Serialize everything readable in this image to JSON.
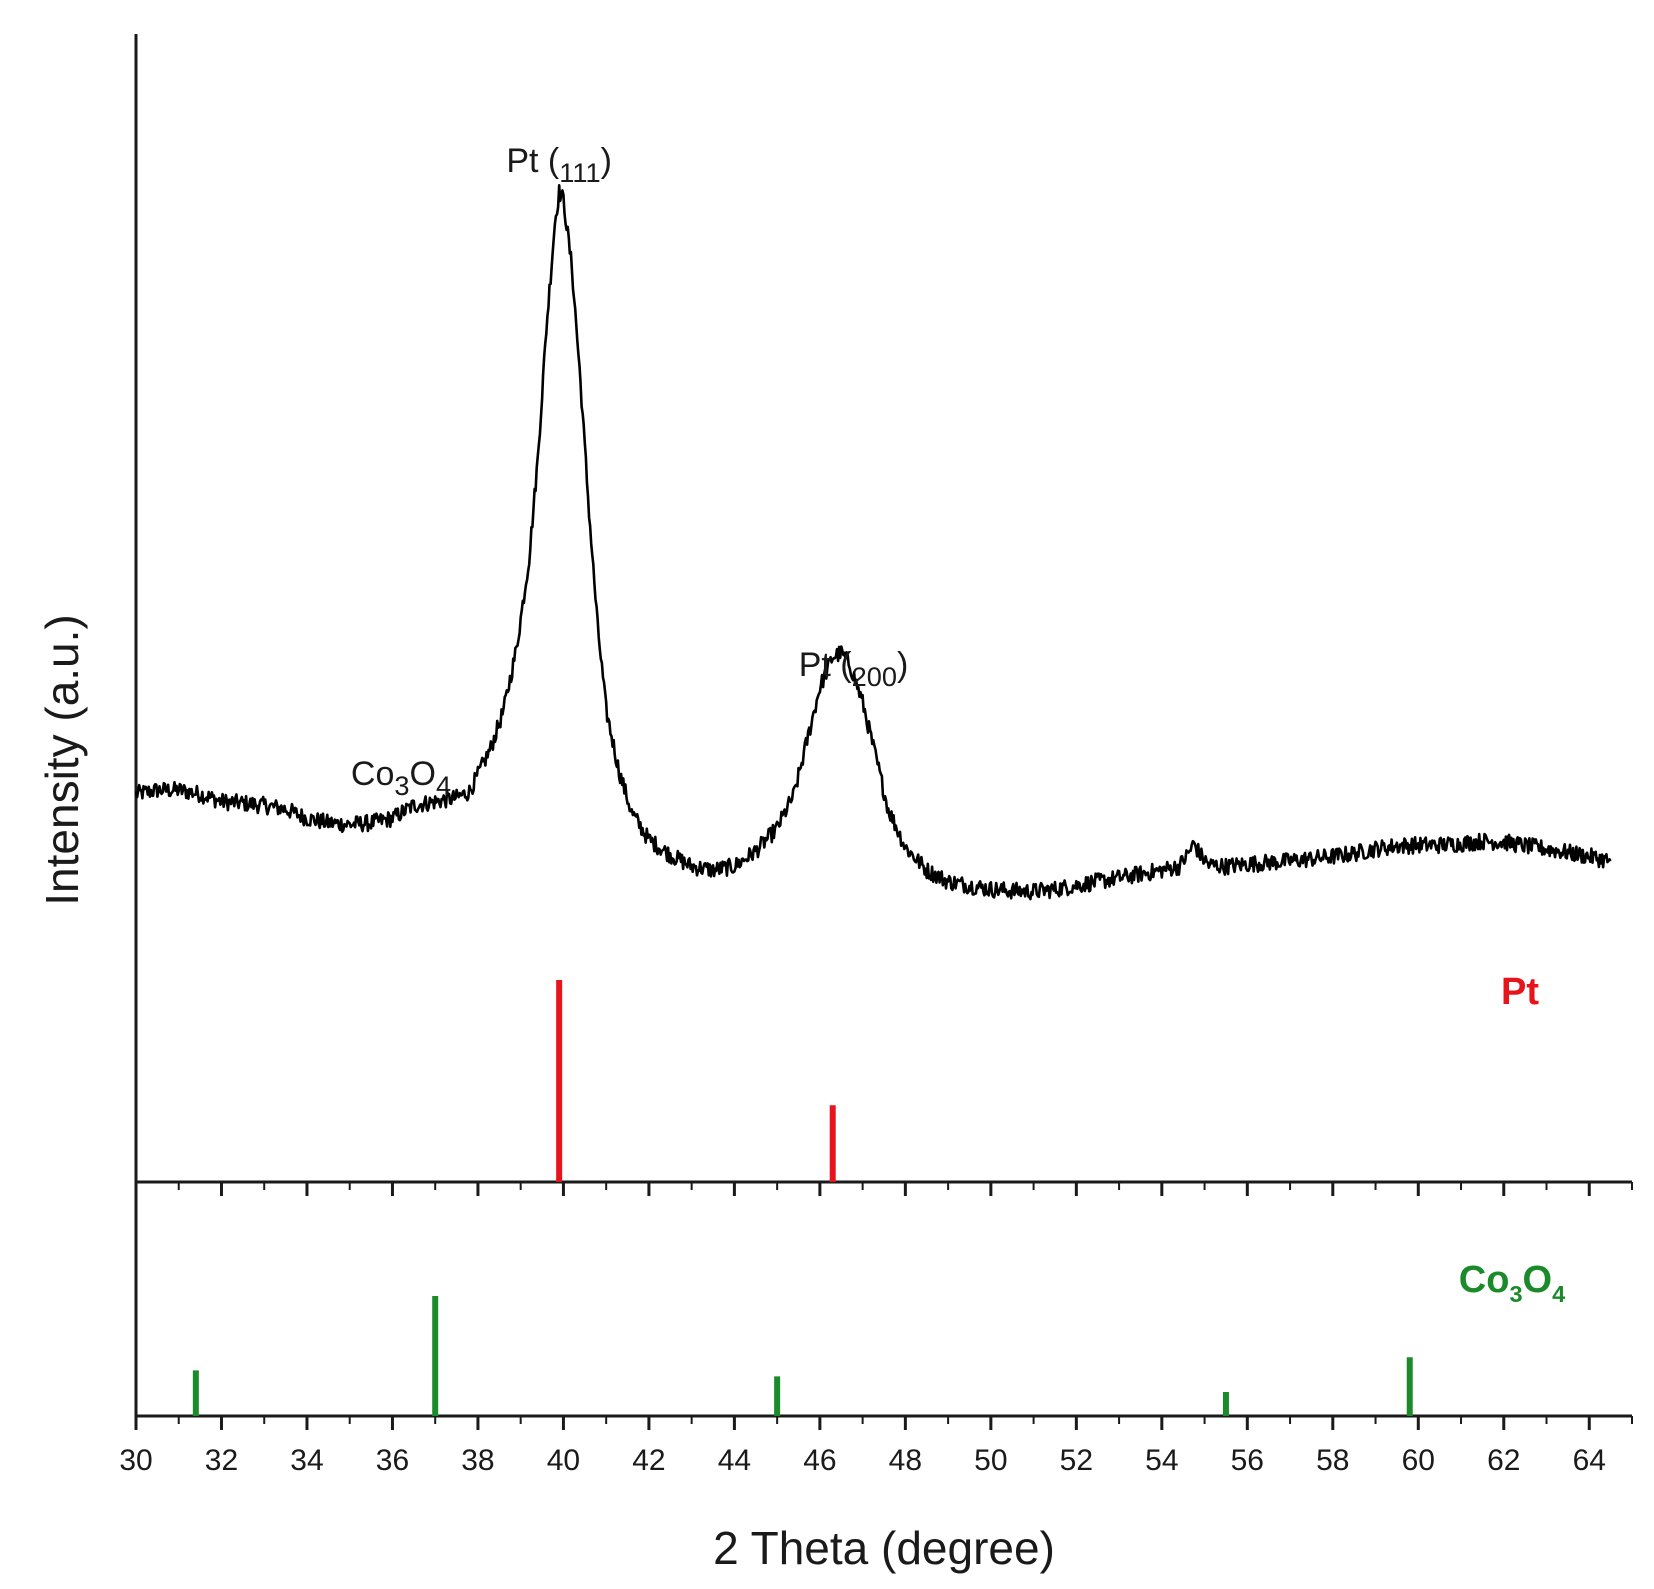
{
  "chart_data": {
    "type": "line",
    "xlabel": "2 Theta (degree)",
    "ylabel": "Intensity (a.u.)",
    "xlim": [
      30,
      65
    ],
    "x_ticks": [
      30,
      32,
      34,
      36,
      38,
      40,
      42,
      44,
      46,
      48,
      50,
      52,
      54,
      56,
      58,
      60,
      62,
      64
    ],
    "y_ticks_shown": false,
    "grid": false,
    "series": [
      {
        "kind": "xrd-pattern",
        "color": "#000000",
        "points": [
          [
            30.0,
            0.21
          ],
          [
            30.5,
            0.215
          ],
          [
            31.0,
            0.215
          ],
          [
            31.5,
            0.21
          ],
          [
            32.0,
            0.2
          ],
          [
            32.5,
            0.198
          ],
          [
            33.0,
            0.195
          ],
          [
            33.5,
            0.19
          ],
          [
            34.0,
            0.178
          ],
          [
            34.5,
            0.172
          ],
          [
            35.0,
            0.17
          ],
          [
            35.5,
            0.172
          ],
          [
            36.0,
            0.178
          ],
          [
            36.5,
            0.195
          ],
          [
            37.0,
            0.2
          ],
          [
            37.5,
            0.205
          ],
          [
            37.8,
            0.213
          ],
          [
            38.0,
            0.235
          ],
          [
            38.3,
            0.27
          ],
          [
            38.6,
            0.32
          ],
          [
            38.9,
            0.4
          ],
          [
            39.2,
            0.52
          ],
          [
            39.4,
            0.65
          ],
          [
            39.6,
            0.82
          ],
          [
            39.8,
            0.96
          ],
          [
            39.9,
            1.0
          ],
          [
            40.0,
            0.99
          ],
          [
            40.2,
            0.9
          ],
          [
            40.4,
            0.75
          ],
          [
            40.6,
            0.58
          ],
          [
            40.8,
            0.43
          ],
          [
            41.0,
            0.32
          ],
          [
            41.3,
            0.24
          ],
          [
            41.6,
            0.185
          ],
          [
            42.0,
            0.15
          ],
          [
            42.5,
            0.13
          ],
          [
            43.0,
            0.115
          ],
          [
            43.5,
            0.11
          ],
          [
            44.0,
            0.115
          ],
          [
            44.5,
            0.135
          ],
          [
            45.0,
            0.165
          ],
          [
            45.4,
            0.21
          ],
          [
            45.7,
            0.28
          ],
          [
            46.0,
            0.35
          ],
          [
            46.3,
            0.39
          ],
          [
            46.5,
            0.395
          ],
          [
            46.7,
            0.38
          ],
          [
            47.0,
            0.33
          ],
          [
            47.3,
            0.26
          ],
          [
            47.6,
            0.19
          ],
          [
            48.0,
            0.14
          ],
          [
            48.5,
            0.11
          ],
          [
            49.0,
            0.095
          ],
          [
            49.5,
            0.09
          ],
          [
            50.0,
            0.085
          ],
          [
            50.5,
            0.083
          ],
          [
            51.0,
            0.082
          ],
          [
            51.5,
            0.085
          ],
          [
            52.0,
            0.09
          ],
          [
            52.5,
            0.095
          ],
          [
            53.0,
            0.1
          ],
          [
            53.5,
            0.105
          ],
          [
            54.0,
            0.11
          ],
          [
            54.4,
            0.115
          ],
          [
            54.6,
            0.13
          ],
          [
            54.75,
            0.145
          ],
          [
            54.9,
            0.13
          ],
          [
            55.1,
            0.117
          ],
          [
            55.5,
            0.115
          ],
          [
            56.0,
            0.118
          ],
          [
            56.5,
            0.12
          ],
          [
            57.0,
            0.122
          ],
          [
            57.5,
            0.125
          ],
          [
            58.0,
            0.128
          ],
          [
            58.5,
            0.132
          ],
          [
            59.0,
            0.138
          ],
          [
            59.5,
            0.142
          ],
          [
            60.0,
            0.143
          ],
          [
            60.5,
            0.143
          ],
          [
            61.0,
            0.145
          ],
          [
            61.5,
            0.148
          ],
          [
            62.0,
            0.147
          ],
          [
            62.5,
            0.142
          ],
          [
            63.0,
            0.138
          ],
          [
            63.5,
            0.133
          ],
          [
            64.0,
            0.128
          ],
          [
            64.5,
            0.122
          ]
        ]
      }
    ],
    "annotations": [
      {
        "text": "Pt (111)",
        "x": 39.9
      },
      {
        "text": "Pt (200)",
        "x": 46.6
      },
      {
        "text": "Co3O4",
        "x": 36.2
      }
    ],
    "reference_patterns": [
      {
        "name": "Pt",
        "color": "#e8141c",
        "lines": [
          {
            "x": 39.9,
            "intensity": 1.0
          },
          {
            "x": 46.3,
            "intensity": 0.38
          }
        ]
      },
      {
        "name": "Co3O4",
        "color": "#1a8a2a",
        "lines": [
          {
            "x": 31.4,
            "intensity": 0.38
          },
          {
            "x": 37.0,
            "intensity": 1.0
          },
          {
            "x": 45.0,
            "intensity": 0.33
          },
          {
            "x": 55.5,
            "intensity": 0.2
          },
          {
            "x": 59.8,
            "intensity": 0.49
          }
        ]
      }
    ]
  }
}
